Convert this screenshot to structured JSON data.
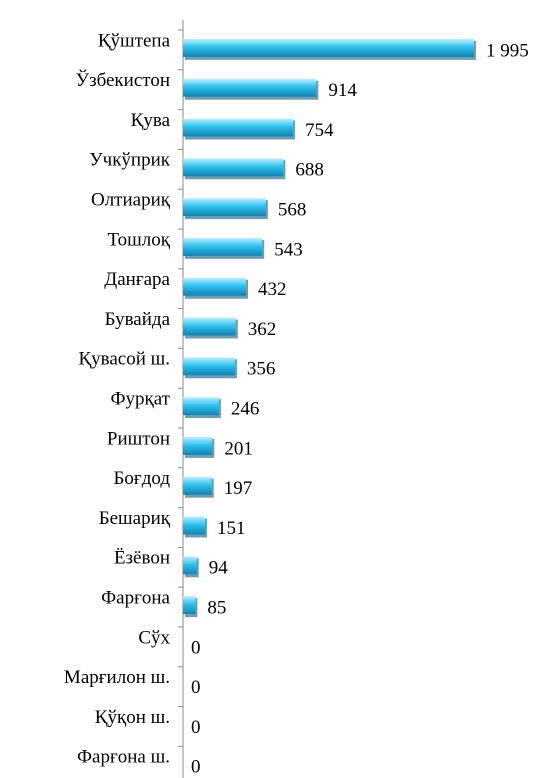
{
  "chart_data": {
    "type": "bar",
    "orientation": "horizontal",
    "categories": [
      "Қўштепа",
      "Ўзбекистон",
      "Қува",
      "Учкўприк",
      "Олтиариқ",
      "Тошлоқ",
      "Данғара",
      "Бувайда",
      "Қувасой ш.",
      "Фурқат",
      "Риштон",
      "Боғдод",
      "Бешариқ",
      "Ёзёвон",
      "Фарғона",
      "Сўх",
      "Марғилон ш.",
      "Қўқон ш.",
      "Фарғона ш."
    ],
    "values": [
      1995,
      914,
      754,
      688,
      568,
      543,
      432,
      362,
      356,
      246,
      201,
      197,
      151,
      94,
      85,
      0,
      0,
      0,
      0
    ],
    "value_labels": [
      "1 995",
      "914",
      "754",
      "688",
      "568",
      "543",
      "432",
      "362",
      "356",
      "246",
      "201",
      "197",
      "151",
      "94",
      "85",
      "0",
      "0",
      "0",
      "0"
    ],
    "color": "#29b6e6"
  }
}
